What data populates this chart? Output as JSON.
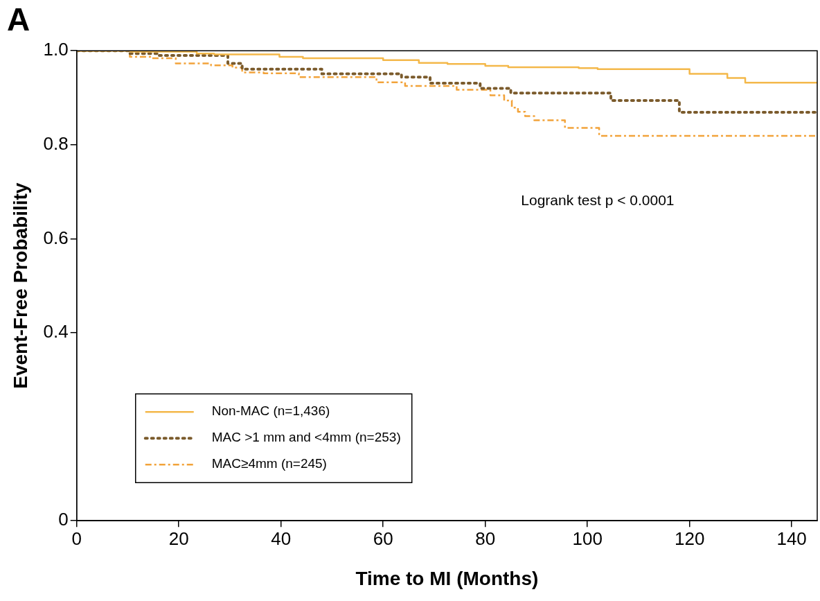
{
  "chart_data": {
    "type": "step",
    "title": "A",
    "xlabel": "Time to MI (Months)",
    "ylabel": "Event-Free Probability",
    "xlim": [
      0,
      145
    ],
    "xticks": [
      0,
      20,
      40,
      60,
      80,
      100,
      120,
      140
    ],
    "ylim": [
      0,
      1.0
    ],
    "yticks": [
      {
        "value": 0,
        "label": "0"
      },
      {
        "value": 0.4,
        "label": "0.4"
      },
      {
        "value": 0.6,
        "label": "0.6"
      },
      {
        "value": 0.8,
        "label": "0.8"
      },
      {
        "value": 1.0,
        "label": "1.0"
      }
    ],
    "grid": false,
    "legend": "bottom left",
    "marker": "none",
    "annotations": [
      "Logrank test p < 0.0001"
    ],
    "series": [
      {
        "name": "Non-MAC (n=1,436)",
        "color": "#f4b84a",
        "line_style": "solid",
        "x": [
          0,
          10.5,
          23.5,
          26.9,
          39.7,
          44.3,
          60,
          67,
          72.6,
          80,
          84.5,
          98.3,
          102,
          120,
          127.4,
          130.9,
          145
        ],
        "values": [
          1.0,
          0.998,
          0.994,
          0.992,
          0.987,
          0.984,
          0.98,
          0.974,
          0.972,
          0.968,
          0.965,
          0.963,
          0.961,
          0.951,
          0.942,
          0.932,
          0.932
        ]
      },
      {
        "name": "MAC >1 mm and <4mm (n=253)",
        "color": "#7b5b2c",
        "line_style": "dotted",
        "x": [
          0,
          10.4,
          15.8,
          29.6,
          32.4,
          48,
          63.6,
          69.2,
          79,
          85,
          104.6,
          118,
          145
        ],
        "values": [
          1.0,
          0.994,
          0.99,
          0.973,
          0.961,
          0.951,
          0.944,
          0.931,
          0.92,
          0.91,
          0.894,
          0.869,
          0.869
        ]
      },
      {
        "name": "MAC≥4mm (n=245)",
        "color": "#f2a33a",
        "line_style": "dashed",
        "x": [
          0,
          10.4,
          14.4,
          19.4,
          26.3,
          30.5,
          32.4,
          36.6,
          43.5,
          58.7,
          64.3,
          74.4,
          81,
          83.7,
          85.2,
          86.4,
          87.8,
          89.6,
          95.6,
          102.3,
          145
        ],
        "values": [
          1.0,
          0.987,
          0.984,
          0.973,
          0.969,
          0.964,
          0.954,
          0.952,
          0.944,
          0.933,
          0.925,
          0.917,
          0.905,
          0.894,
          0.879,
          0.87,
          0.861,
          0.852,
          0.836,
          0.819,
          0.819
        ]
      }
    ]
  }
}
